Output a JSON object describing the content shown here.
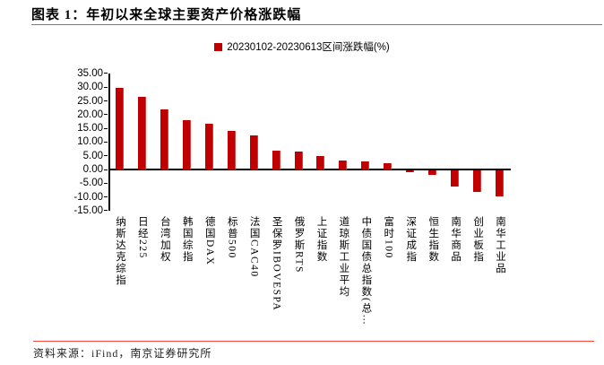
{
  "header": {
    "title": "图表 1：年初以来全球主要资产价格涨跌幅"
  },
  "colors": {
    "bar": "#c00000",
    "accent_rule": "#f8473a",
    "axis": "#000000"
  },
  "chart_data": {
    "type": "bar",
    "title": "",
    "legend": "20230102-20230613区间涨跌幅(%)",
    "legend_position": "top-center",
    "xlabel": "",
    "ylabel": "",
    "ylim": [
      -15,
      35
    ],
    "ytick_step": 5,
    "grid": false,
    "categories": [
      "纳斯达克综指",
      "日经225",
      "台湾加权",
      "韩国综指",
      "德国DAX",
      "标普500",
      "法国CAC40",
      "圣保罗IBOVESPA",
      "俄罗斯RTS",
      "上证指数",
      "道琼斯工业平均",
      "中债国债总指数(总…",
      "富时100",
      "深证成指",
      "恒生指数",
      "南华商品",
      "创业板指",
      "南华工业品"
    ],
    "values": [
      29.7,
      26.6,
      21.9,
      18.0,
      16.8,
      14.0,
      12.5,
      6.8,
      6.4,
      4.9,
      3.4,
      3.0,
      2.3,
      -0.8,
      -1.5,
      -6.0,
      -7.8,
      -9.6
    ]
  },
  "footer": {
    "source": "资料来源：iFind，南京证券研究所"
  }
}
